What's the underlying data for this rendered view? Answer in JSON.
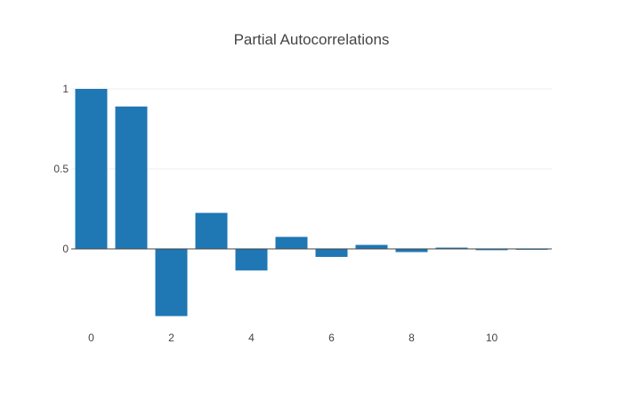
{
  "chart_data": {
    "type": "bar",
    "title": "Partial Autocorrelations",
    "xlabel": "",
    "ylabel": "",
    "x": [
      0,
      1,
      2,
      3,
      4,
      5,
      6,
      7,
      8,
      9,
      10,
      11
    ],
    "values": [
      1.0,
      0.89,
      -0.42,
      0.225,
      -0.135,
      0.075,
      -0.05,
      0.025,
      -0.02,
      0.008,
      -0.008,
      -0.005
    ],
    "xlim": [
      -0.5,
      11.5
    ],
    "ylim": [
      -0.5,
      1.0
    ],
    "xticks": [
      0,
      2,
      4,
      6,
      8,
      10
    ],
    "yticks": [
      0,
      0.5,
      1
    ],
    "ytick_labels": [
      "0",
      "0.5",
      "1"
    ],
    "grid": true,
    "legend": "none",
    "bar_color": "#1f77b4"
  }
}
